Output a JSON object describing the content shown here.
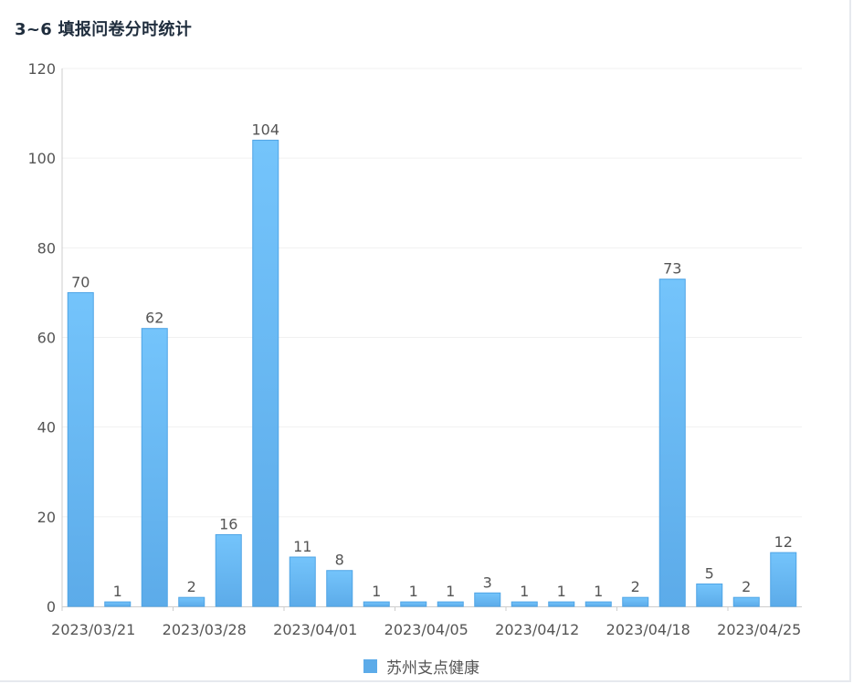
{
  "page_title": "3~6 填报问卷分时统计",
  "colors": {
    "bar_top": "#74c4fb",
    "bar_bottom": "#5cabe9",
    "bar_stroke": "#4ea4e6",
    "grid": "#f1f1f1",
    "axis": "#cccccc"
  },
  "chart_data": {
    "type": "bar",
    "title": "3~6 填报问卷分时统计",
    "xlabel": "",
    "ylabel": "",
    "ylim": [
      0,
      120
    ],
    "y_ticks": [
      "0",
      "20",
      "40",
      "60",
      "80",
      "100",
      "120"
    ],
    "x_tick_labels": [
      "2023/03/21",
      "2023/03/28",
      "2023/04/01",
      "2023/04/05",
      "2023/04/12",
      "2023/04/18",
      "2023/04/25"
    ],
    "x_tick_label_every": 3,
    "bar_count": 20,
    "series": [
      {
        "name": "苏州支点健康",
        "values": [
          70,
          1,
          62,
          2,
          16,
          104,
          11,
          8,
          1,
          1,
          1,
          3,
          1,
          1,
          1,
          2,
          73,
          5,
          2,
          12
        ]
      }
    ],
    "legend": [
      "苏州支点健康"
    ],
    "legend_position": "bottom-center",
    "grid": true
  }
}
